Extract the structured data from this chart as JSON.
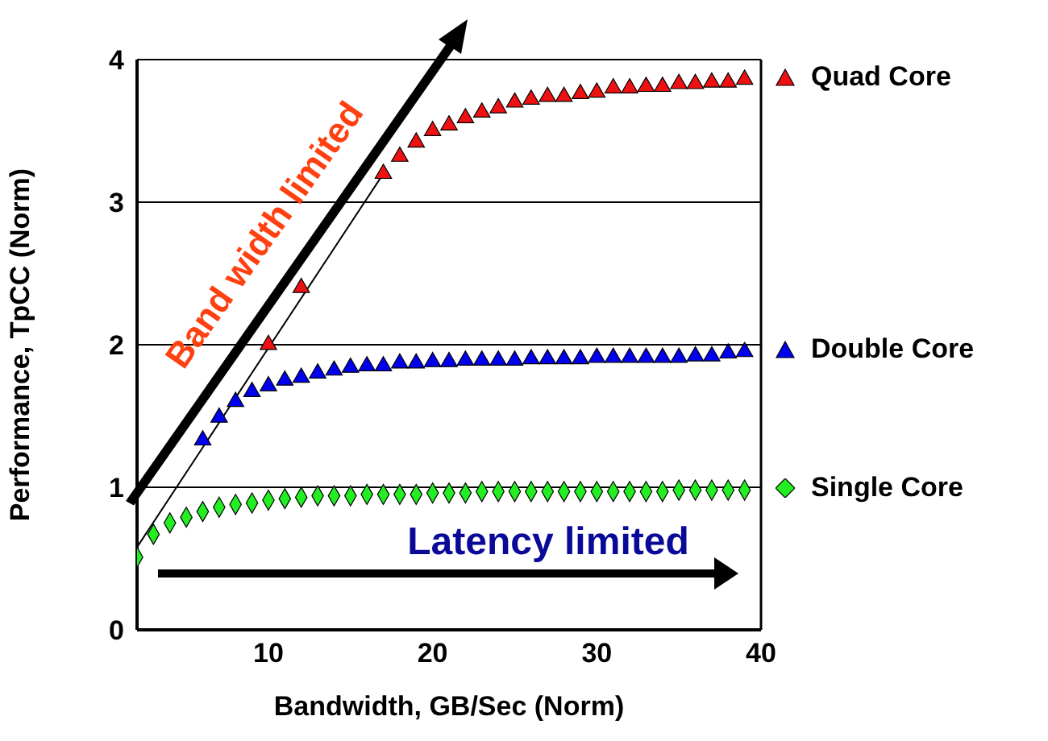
{
  "chart_data": {
    "type": "scatter",
    "xlabel": "Bandwidth, GB/Sec (Norm)",
    "ylabel": "Performance, TpCC (Norm)",
    "xlim": [
      2,
      40
    ],
    "xticks": [
      10,
      20,
      30,
      40
    ],
    "ylim": [
      0,
      4
    ],
    "yticks": [
      0,
      1,
      2,
      3,
      4
    ],
    "grid": "y",
    "legend": "right",
    "annotations": [
      "Band width limited",
      "Latency limited"
    ],
    "series": [
      {
        "name": "Quad Core",
        "color": "#ee1111",
        "marker": "triangle",
        "x": [
          10,
          12,
          17,
          18,
          19,
          20,
          21,
          22,
          23,
          24,
          25,
          26,
          27,
          28,
          29,
          30,
          31,
          32,
          33,
          34,
          35,
          36,
          37,
          38,
          39
        ],
        "values": [
          2.0,
          2.4,
          3.2,
          3.32,
          3.42,
          3.5,
          3.54,
          3.59,
          3.63,
          3.66,
          3.7,
          3.72,
          3.74,
          3.74,
          3.76,
          3.77,
          3.8,
          3.8,
          3.81,
          3.81,
          3.83,
          3.83,
          3.84,
          3.84,
          3.86
        ]
      },
      {
        "name": "Double Core",
        "color": "#0000ee",
        "marker": "triangle",
        "x": [
          6,
          7,
          8,
          9,
          10,
          11,
          12,
          13,
          14,
          15,
          16,
          17,
          18,
          19,
          20,
          21,
          22,
          23,
          24,
          25,
          26,
          27,
          28,
          29,
          30,
          31,
          32,
          33,
          34,
          35,
          36,
          37,
          38,
          39
        ],
        "values": [
          1.33,
          1.49,
          1.6,
          1.67,
          1.71,
          1.75,
          1.77,
          1.8,
          1.82,
          1.84,
          1.85,
          1.85,
          1.87,
          1.87,
          1.88,
          1.88,
          1.89,
          1.89,
          1.89,
          1.89,
          1.9,
          1.9,
          1.9,
          1.9,
          1.91,
          1.91,
          1.91,
          1.91,
          1.91,
          1.91,
          1.92,
          1.92,
          1.94,
          1.95
        ]
      },
      {
        "name": "Single Core",
        "color": "#22ee22",
        "marker": "diamond",
        "x": [
          2,
          3,
          4,
          5,
          6,
          7,
          8,
          9,
          10,
          11,
          12,
          13,
          14,
          15,
          16,
          17,
          18,
          19,
          20,
          21,
          22,
          23,
          24,
          25,
          26,
          27,
          28,
          29,
          30,
          31,
          32,
          33,
          34,
          35,
          36,
          37,
          38,
          39
        ],
        "values": [
          0.51,
          0.67,
          0.75,
          0.79,
          0.83,
          0.86,
          0.88,
          0.89,
          0.91,
          0.92,
          0.93,
          0.94,
          0.94,
          0.94,
          0.95,
          0.95,
          0.95,
          0.95,
          0.96,
          0.96,
          0.96,
          0.97,
          0.97,
          0.97,
          0.97,
          0.97,
          0.97,
          0.97,
          0.97,
          0.97,
          0.97,
          0.97,
          0.97,
          0.98,
          0.98,
          0.98,
          0.98,
          0.98
        ]
      },
      {
        "type": "line",
        "color": "#000000",
        "x": [
          2,
          17
        ],
        "values": [
          0.58,
          3.2
        ]
      }
    ]
  }
}
